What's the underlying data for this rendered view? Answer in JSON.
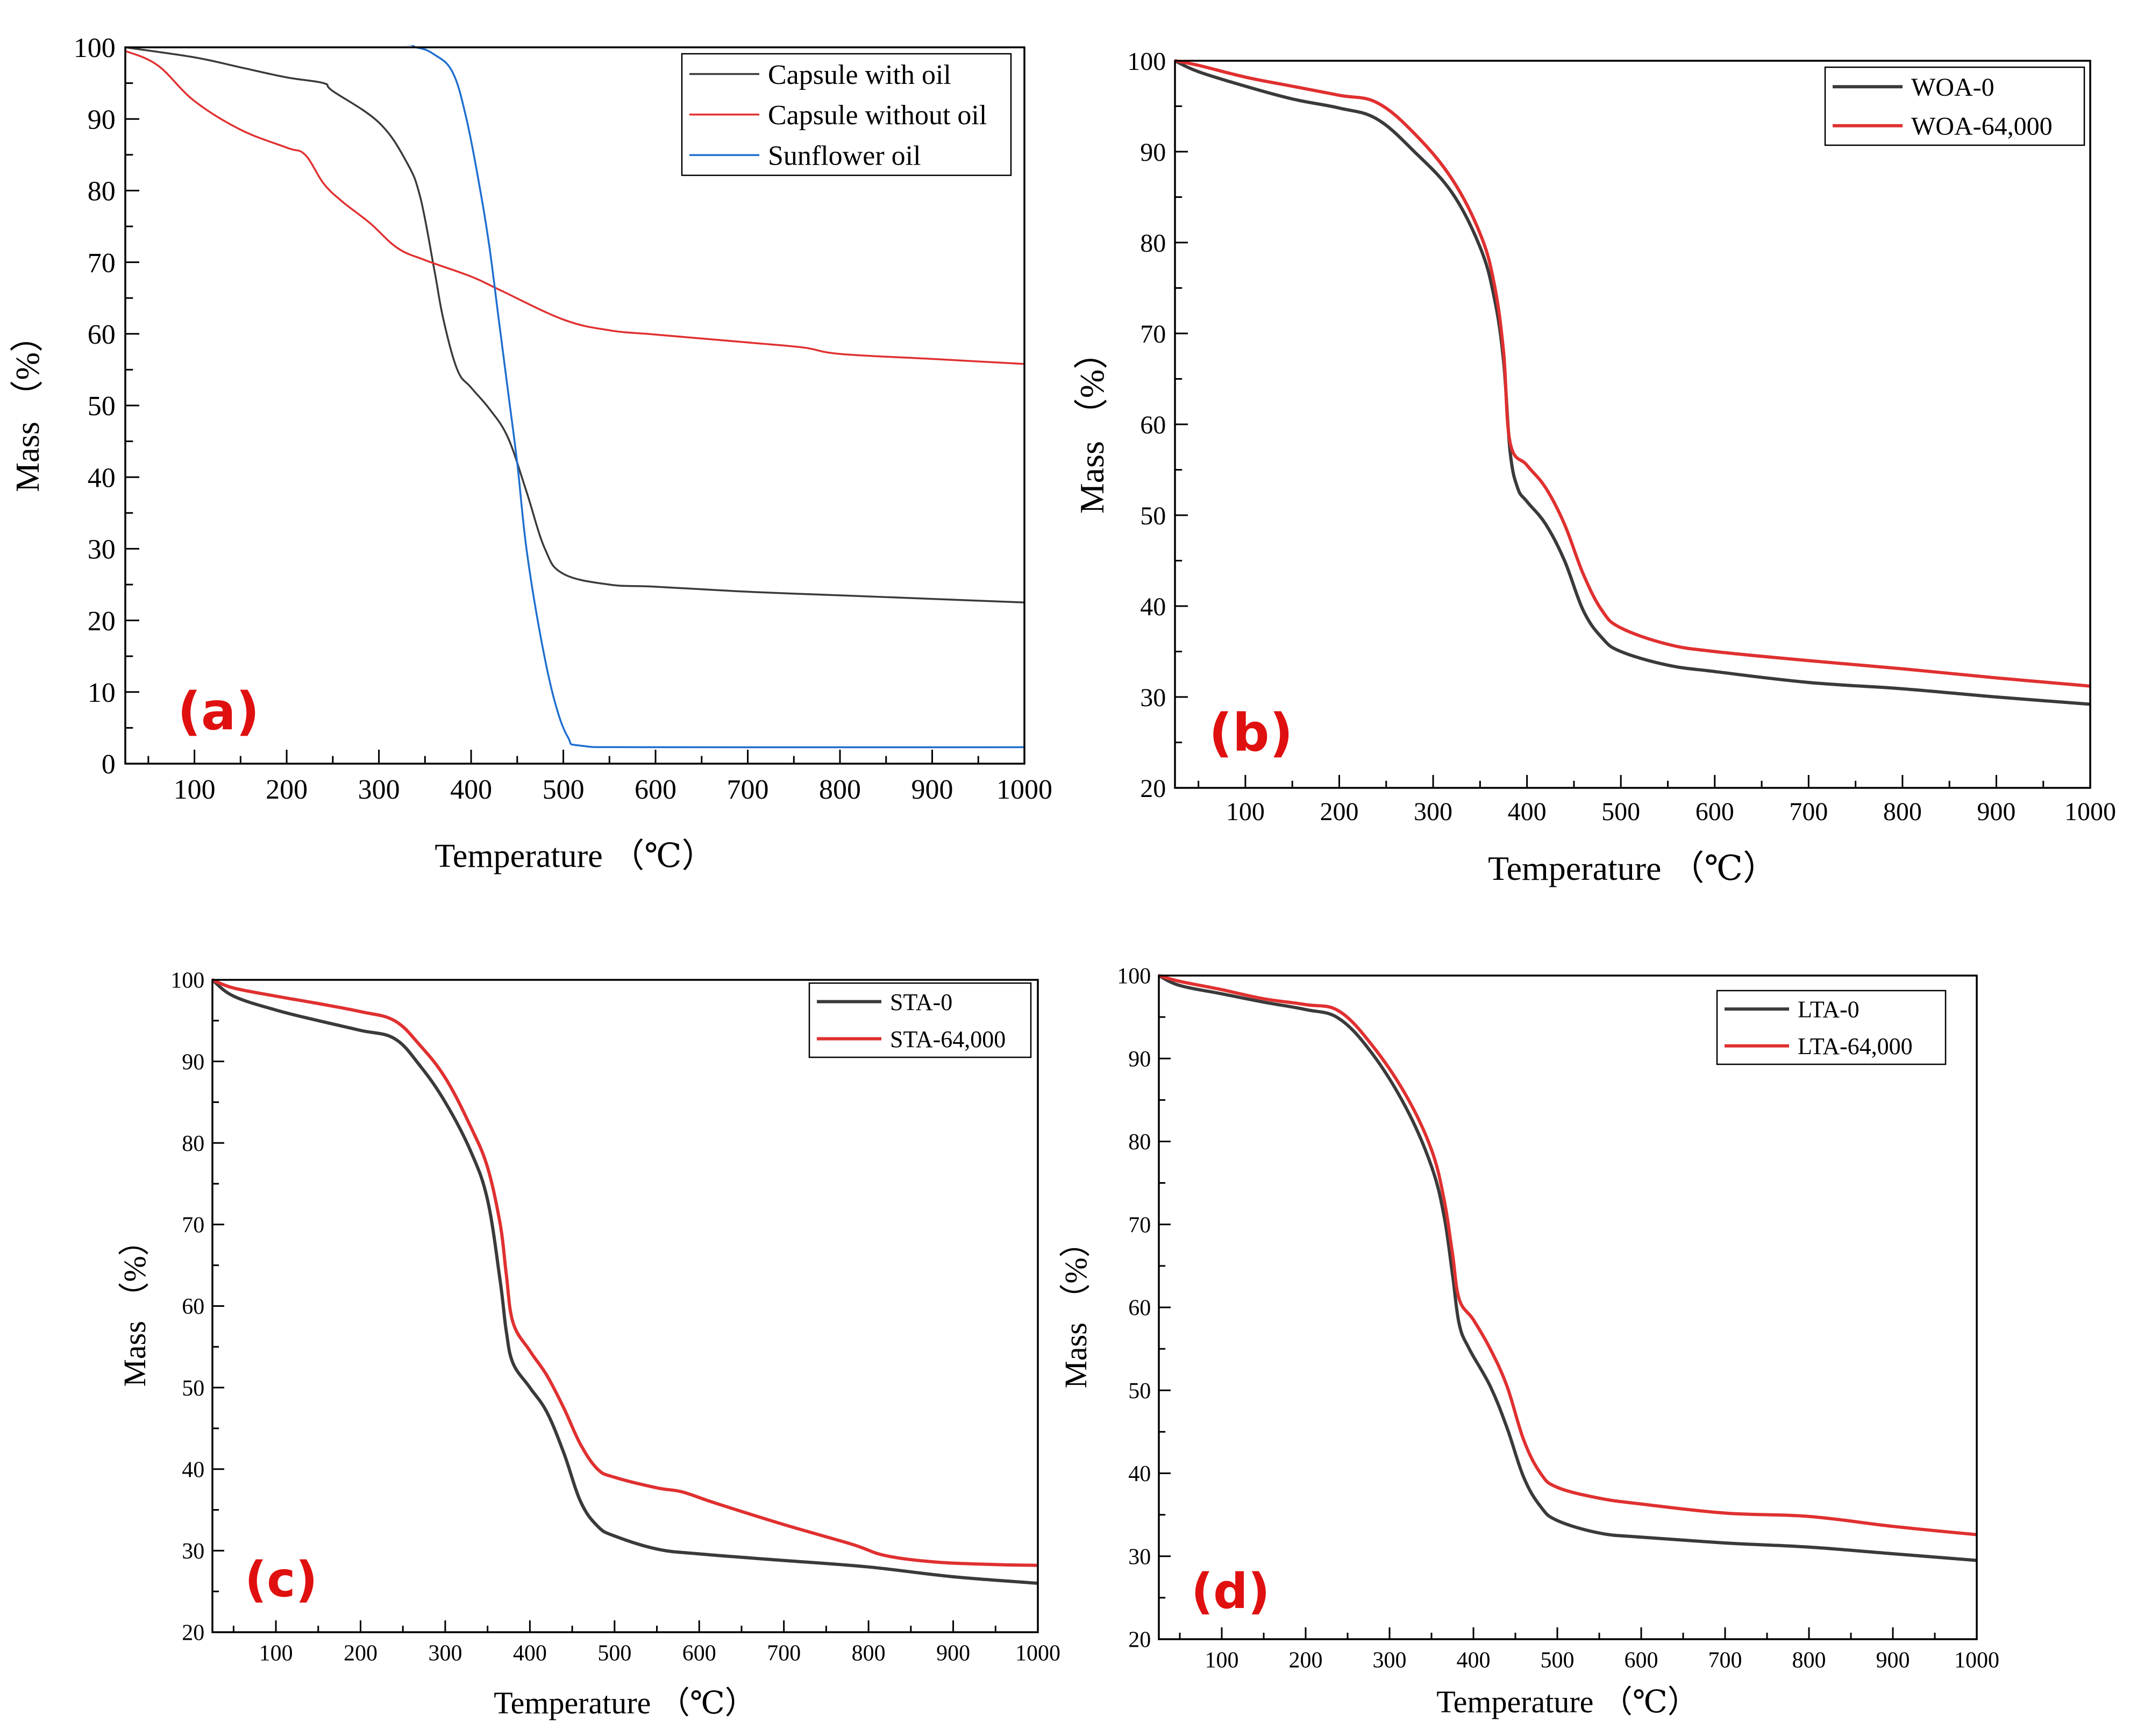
{
  "colors": {
    "black_series": "#3a3a3a",
    "red_series": "#e03030",
    "blue_series": "#1f6fd0",
    "panel_label": "#e01010"
  },
  "chart_data": [
    {
      "id": "a",
      "type": "line",
      "panel_label": "(a)",
      "xlabel": "Temperature （℃）",
      "ylabel": "Mass （%）",
      "xlim": [
        25,
        1000
      ],
      "ylim": [
        0,
        100
      ],
      "xticks": [
        100,
        200,
        300,
        400,
        500,
        600,
        700,
        800,
        900,
        1000
      ],
      "yticks": [
        0,
        10,
        20,
        30,
        40,
        50,
        60,
        70,
        80,
        90,
        100
      ],
      "legend_position": "top-right",
      "series": [
        {
          "name": "Capsule with oil",
          "color": "#3a3a3a",
          "points": [
            [
              25,
              100
            ],
            [
              100,
              98.6
            ],
            [
              150,
              97.2
            ],
            [
              200,
              95.8
            ],
            [
              240,
              95
            ],
            [
              250,
              93.9
            ],
            [
              300,
              89.5
            ],
            [
              330,
              84
            ],
            [
              345,
              79
            ],
            [
              360,
              69
            ],
            [
              370,
              62
            ],
            [
              385,
              55
            ],
            [
              400,
              52.5
            ],
            [
              420,
              49.5
            ],
            [
              440,
              45.5
            ],
            [
              460,
              38
            ],
            [
              480,
              30
            ],
            [
              500,
              26.5
            ],
            [
              550,
              25
            ],
            [
              600,
              24.7
            ],
            [
              700,
              24
            ],
            [
              800,
              23.5
            ],
            [
              900,
              23
            ],
            [
              1000,
              22.5
            ]
          ]
        },
        {
          "name": "Capsule without oil",
          "color": "#e03030",
          "points": [
            [
              25,
              99.5
            ],
            [
              60,
              97.5
            ],
            [
              100,
              92.5
            ],
            [
              150,
              88.5
            ],
            [
              200,
              86
            ],
            [
              220,
              85
            ],
            [
              240,
              81
            ],
            [
              260,
              78.5
            ],
            [
              290,
              75.5
            ],
            [
              320,
              72
            ],
            [
              350,
              70.3
            ],
            [
              400,
              68
            ],
            [
              430,
              66.2
            ],
            [
              500,
              62
            ],
            [
              550,
              60.5
            ],
            [
              600,
              59.9
            ],
            [
              700,
              58.8
            ],
            [
              760,
              58.1
            ],
            [
              800,
              57.2
            ],
            [
              900,
              56.5
            ],
            [
              1000,
              55.8
            ]
          ]
        },
        {
          "name": "Sunflower oil",
          "color": "#1f6fd0",
          "points": [
            [
              25,
              100.5
            ],
            [
              300,
              100.5
            ],
            [
              340,
              100
            ],
            [
              360,
              99
            ],
            [
              380,
              96.5
            ],
            [
              395,
              90
            ],
            [
              410,
              80
            ],
            [
              420,
              72
            ],
            [
              430,
              62
            ],
            [
              440,
              52
            ],
            [
              450,
              42
            ],
            [
              460,
              30
            ],
            [
              475,
              18
            ],
            [
              490,
              9
            ],
            [
              505,
              3.7
            ],
            [
              520,
              2.5
            ],
            [
              600,
              2.3
            ],
            [
              1000,
              2.3
            ]
          ]
        }
      ]
    },
    {
      "id": "b",
      "type": "line",
      "panel_label": "(b)",
      "xlabel": "Temperature （℃）",
      "ylabel": "Mass （%）",
      "xlim": [
        25,
        1000
      ],
      "ylim": [
        20,
        100
      ],
      "xticks": [
        100,
        200,
        300,
        400,
        500,
        600,
        700,
        800,
        900,
        1000
      ],
      "yticks": [
        20,
        30,
        40,
        50,
        60,
        70,
        80,
        90,
        100
      ],
      "legend_position": "top-right",
      "series": [
        {
          "name": "WOA-0",
          "color": "#3a3a3a",
          "points": [
            [
              25,
              100
            ],
            [
              50,
              98.8
            ],
            [
              100,
              97.2
            ],
            [
              150,
              95.8
            ],
            [
              200,
              94.8
            ],
            [
              240,
              93.6
            ],
            [
              280,
              90
            ],
            [
              320,
              85.5
            ],
            [
              350,
              79.5
            ],
            [
              365,
              74
            ],
            [
              375,
              67
            ],
            [
              382,
              57
            ],
            [
              390,
              53
            ],
            [
              400,
              51.5
            ],
            [
              420,
              49
            ],
            [
              440,
              45
            ],
            [
              460,
              39.5
            ],
            [
              480,
              36.5
            ],
            [
              500,
              35
            ],
            [
              550,
              33.5
            ],
            [
              600,
              32.8
            ],
            [
              700,
              31.6
            ],
            [
              800,
              30.9
            ],
            [
              900,
              30
            ],
            [
              1000,
              29.2
            ]
          ]
        },
        {
          "name": "WOA-64,000",
          "color": "#e03030",
          "points": [
            [
              25,
              100
            ],
            [
              50,
              99.5
            ],
            [
              100,
              98.2
            ],
            [
              150,
              97.2
            ],
            [
              200,
              96.2
            ],
            [
              240,
              95.4
            ],
            [
              280,
              92
            ],
            [
              320,
              87
            ],
            [
              350,
              81
            ],
            [
              365,
              75.5
            ],
            [
              375,
              68
            ],
            [
              382,
              58
            ],
            [
              400,
              55.5
            ],
            [
              420,
              53
            ],
            [
              440,
              49
            ],
            [
              460,
              43.5
            ],
            [
              480,
              39.5
            ],
            [
              500,
              37.6
            ],
            [
              550,
              35.8
            ],
            [
              600,
              35
            ],
            [
              700,
              34
            ],
            [
              800,
              33.1
            ],
            [
              900,
              32.1
            ],
            [
              1000,
              31.2
            ]
          ]
        }
      ]
    },
    {
      "id": "c",
      "type": "line",
      "panel_label": "(c)",
      "xlabel": "Temperature （℃）",
      "ylabel": "Mass （%）",
      "xlim": [
        25,
        1000
      ],
      "ylim": [
        20,
        100
      ],
      "xticks": [
        100,
        200,
        300,
        400,
        500,
        600,
        700,
        800,
        900,
        1000
      ],
      "yticks": [
        20,
        30,
        40,
        50,
        60,
        70,
        80,
        90,
        100
      ],
      "legend_position": "top-right",
      "series": [
        {
          "name": "STA-0",
          "color": "#3a3a3a",
          "points": [
            [
              25,
              100
            ],
            [
              50,
              98
            ],
            [
              100,
              96.3
            ],
            [
              150,
              95
            ],
            [
              200,
              93.8
            ],
            [
              240,
              92.8
            ],
            [
              270,
              89.5
            ],
            [
              300,
              85
            ],
            [
              330,
              79
            ],
            [
              350,
              73
            ],
            [
              365,
              63
            ],
            [
              372,
              57
            ],
            [
              380,
              53
            ],
            [
              400,
              50
            ],
            [
              420,
              47
            ],
            [
              440,
              42
            ],
            [
              460,
              36
            ],
            [
              480,
              33
            ],
            [
              500,
              31.8
            ],
            [
              550,
              30.2
            ],
            [
              600,
              29.6
            ],
            [
              700,
              28.8
            ],
            [
              800,
              28
            ],
            [
              900,
              26.8
            ],
            [
              1000,
              26
            ]
          ]
        },
        {
          "name": "STA-64,000",
          "color": "#e03030",
          "points": [
            [
              25,
              100
            ],
            [
              50,
              99
            ],
            [
              100,
              98
            ],
            [
              150,
              97.1
            ],
            [
              200,
              96.1
            ],
            [
              240,
              95
            ],
            [
              270,
              92
            ],
            [
              300,
              88
            ],
            [
              330,
              82
            ],
            [
              350,
              77
            ],
            [
              365,
              70
            ],
            [
              372,
              64
            ],
            [
              380,
              58
            ],
            [
              400,
              54.5
            ],
            [
              420,
              51.5
            ],
            [
              440,
              47.5
            ],
            [
              460,
              43
            ],
            [
              480,
              40
            ],
            [
              500,
              39
            ],
            [
              550,
              37.7
            ],
            [
              580,
              37.2
            ],
            [
              620,
              35.8
            ],
            [
              700,
              33.2
            ],
            [
              780,
              30.8
            ],
            [
              820,
              29.4
            ],
            [
              880,
              28.6
            ],
            [
              950,
              28.3
            ],
            [
              1000,
              28.2
            ]
          ]
        }
      ]
    },
    {
      "id": "d",
      "type": "line",
      "panel_label": "(d)",
      "xlabel": "Temperature （℃）",
      "ylabel": "Mass （%）",
      "xlim": [
        25,
        1000
      ],
      "ylim": [
        20,
        100
      ],
      "xticks": [
        100,
        200,
        300,
        400,
        500,
        600,
        700,
        800,
        900,
        1000
      ],
      "yticks": [
        20,
        30,
        40,
        50,
        60,
        70,
        80,
        90,
        100
      ],
      "legend_position": "top-right",
      "series": [
        {
          "name": "LTA-0",
          "color": "#3a3a3a",
          "points": [
            [
              25,
              100
            ],
            [
              50,
              98.8
            ],
            [
              100,
              97.8
            ],
            [
              150,
              96.8
            ],
            [
              200,
              95.9
            ],
            [
              240,
              94.8
            ],
            [
              280,
              90.5
            ],
            [
              320,
              84
            ],
            [
              350,
              77
            ],
            [
              365,
              71
            ],
            [
              375,
              64
            ],
            [
              383,
              58
            ],
            [
              395,
              55
            ],
            [
              420,
              50.5
            ],
            [
              440,
              45.5
            ],
            [
              460,
              39.5
            ],
            [
              480,
              36
            ],
            [
              500,
              34.3
            ],
            [
              550,
              32.8
            ],
            [
              600,
              32.3
            ],
            [
              700,
              31.6
            ],
            [
              800,
              31.1
            ],
            [
              900,
              30.3
            ],
            [
              1000,
              29.5
            ]
          ]
        },
        {
          "name": "LTA-64,000",
          "color": "#e03030",
          "points": [
            [
              25,
              100
            ],
            [
              50,
              99.3
            ],
            [
              100,
              98.3
            ],
            [
              150,
              97.2
            ],
            [
              200,
              96.5
            ],
            [
              240,
              95.7
            ],
            [
              280,
              91.5
            ],
            [
              320,
              85.5
            ],
            [
              350,
              79
            ],
            [
              365,
              73
            ],
            [
              375,
              66.5
            ],
            [
              383,
              61
            ],
            [
              400,
              58.5
            ],
            [
              420,
              55
            ],
            [
              440,
              50.5
            ],
            [
              460,
              44
            ],
            [
              480,
              40
            ],
            [
              500,
              38.3
            ],
            [
              550,
              37
            ],
            [
              600,
              36.3
            ],
            [
              700,
              35.2
            ],
            [
              800,
              34.8
            ],
            [
              900,
              33.6
            ],
            [
              1000,
              32.6
            ]
          ]
        }
      ]
    }
  ]
}
